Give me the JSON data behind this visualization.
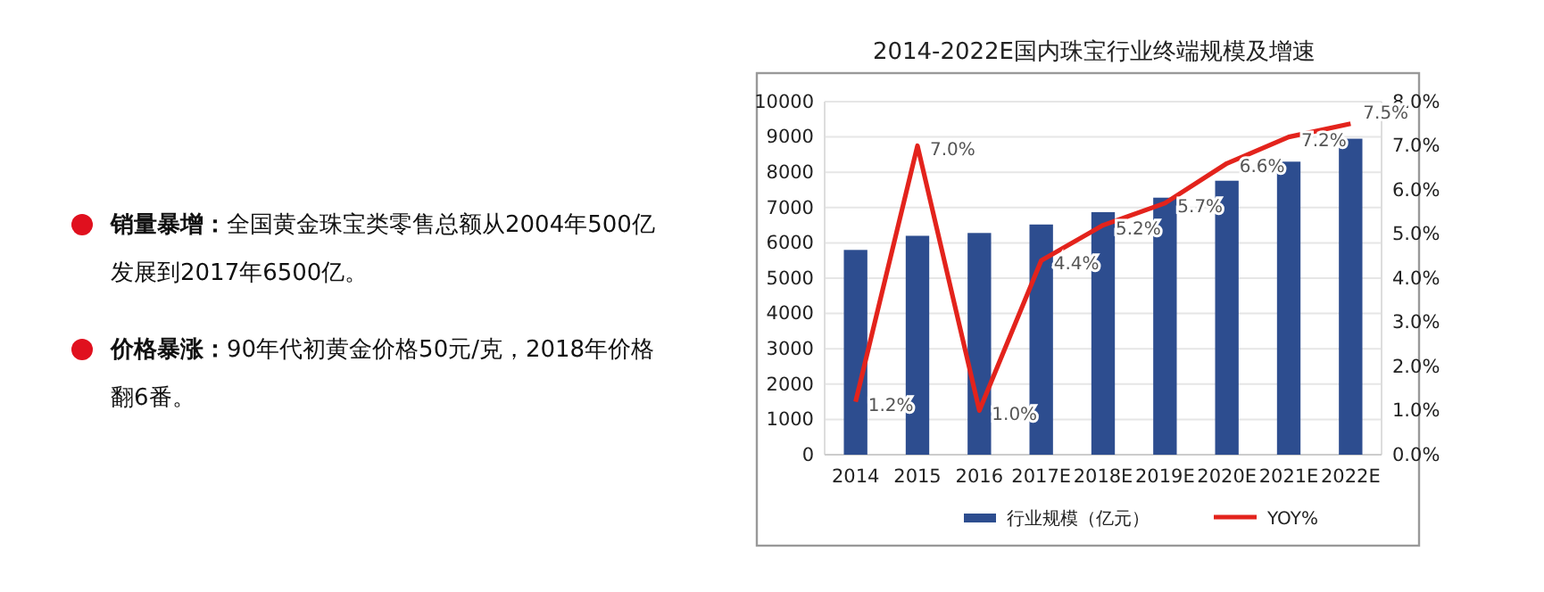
{
  "chart_data": {
    "type": "bar",
    "title": "2014-2022E国内珠宝行业终端规模及增速",
    "categories": [
      "2014",
      "2015",
      "2016",
      "2017E",
      "2018E",
      "2019E",
      "2020E",
      "2021E",
      "2022E"
    ],
    "series": [
      {
        "name": "行业规模（亿元）",
        "color": "#2d4d8f",
        "values": [
          5800,
          6200,
          6280,
          6520,
          6870,
          7280,
          7760,
          8300,
          8950
        ]
      },
      {
        "name": "YOY%",
        "type": "line",
        "axis": "y2",
        "color": "#e3231c",
        "values": [
          1.2,
          7.0,
          1.0,
          4.4,
          5.2,
          5.7,
          6.6,
          7.2,
          7.5
        ],
        "value_labels": [
          "1.2%",
          "7.0%",
          "1.0%",
          "4.4%",
          "5.2%",
          "5.7%",
          "6.6%",
          "7.2%",
          "7.5%"
        ]
      }
    ],
    "ylim": [
      0,
      10000
    ],
    "yticks": [
      0,
      1000,
      2000,
      3000,
      4000,
      5000,
      6000,
      7000,
      8000,
      9000,
      10000
    ],
    "y2lim": [
      0,
      8
    ],
    "y2ticks": [
      {
        "value": 0,
        "label": "0.0%"
      },
      {
        "value": 1,
        "label": "1.0%"
      },
      {
        "value": 2,
        "label": "2.0%"
      },
      {
        "value": 3,
        "label": "3.0%"
      },
      {
        "value": 4,
        "label": "4.0%"
      },
      {
        "value": 5,
        "label": "5.0%"
      },
      {
        "value": 6,
        "label": "6.0%"
      },
      {
        "value": 7,
        "label": "7.0%"
      },
      {
        "value": 8,
        "label": "8.0%"
      }
    ],
    "grid": "y",
    "legend": "bottom",
    "marker": "none",
    "line_style": "solid",
    "annotations": [
      "销量暴增：全国黄金珠宝类零售总额从2004年500亿发展到2017年6500亿。",
      "价格暴涨：90年代初黄金价格50元/克，2018年价格翻6番。"
    ]
  }
}
